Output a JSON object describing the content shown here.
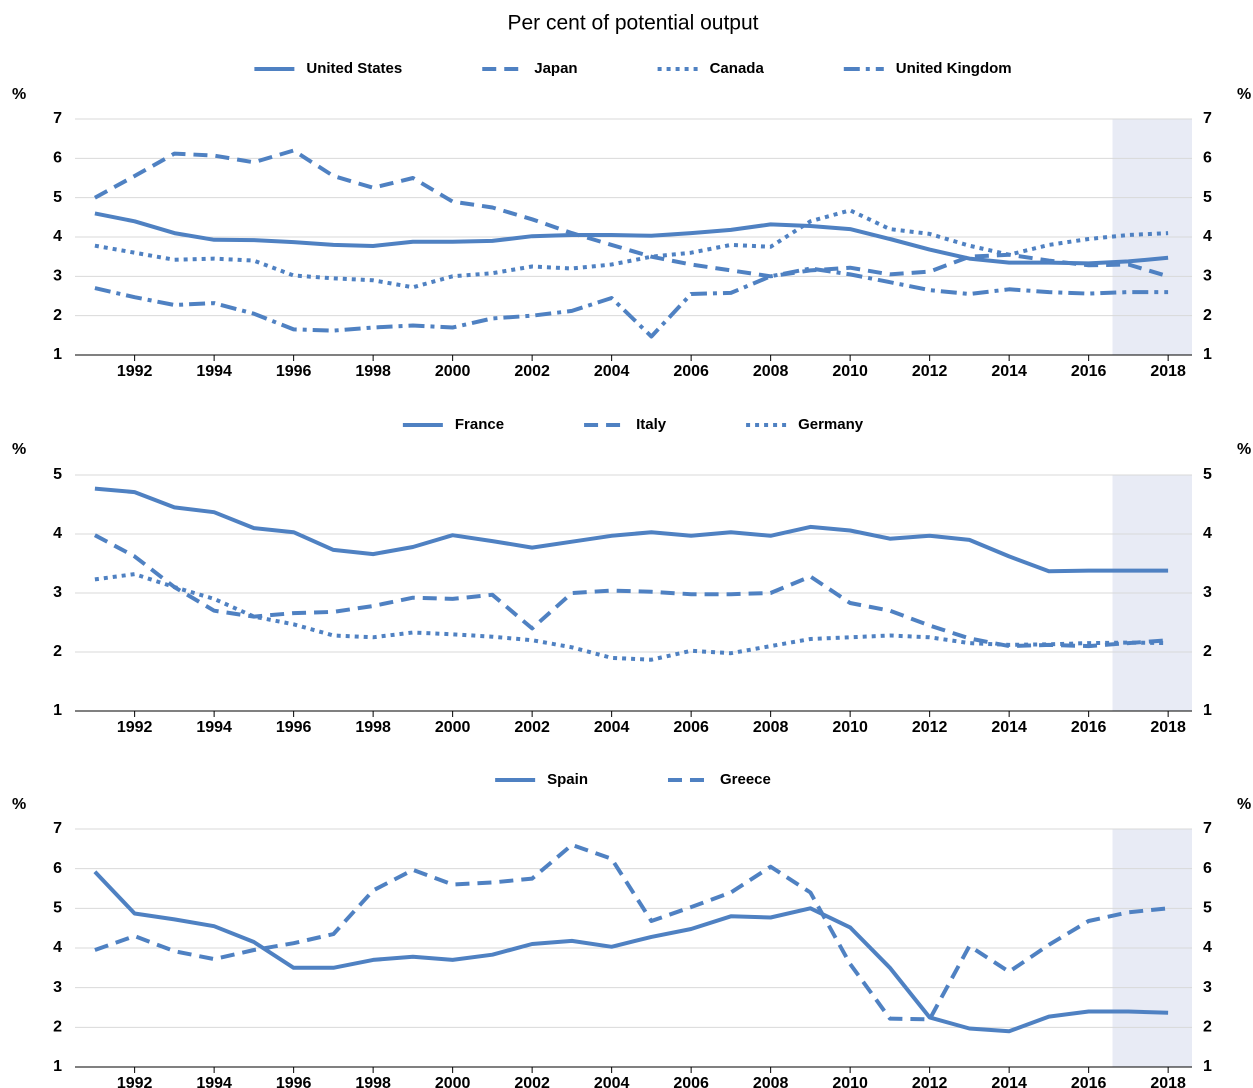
{
  "title": "Per cent of potential output",
  "chart_data": [
    {
      "type": "line",
      "ylabel": "%",
      "y2label": "%",
      "x": [
        1991,
        1992,
        1993,
        1994,
        1995,
        1996,
        1997,
        1998,
        1999,
        2000,
        2001,
        2002,
        2003,
        2004,
        2005,
        2006,
        2007,
        2008,
        2009,
        2010,
        2011,
        2012,
        2013,
        2014,
        2015,
        2016,
        2017,
        2018
      ],
      "xlim": [
        1990.5,
        2018.6
      ],
      "xticks": [
        1992,
        1994,
        1996,
        1998,
        2000,
        2002,
        2004,
        2006,
        2008,
        2010,
        2012,
        2014,
        2016,
        2018
      ],
      "ylim": [
        1,
        7
      ],
      "yticks": [
        1,
        2,
        3,
        4,
        5,
        6,
        7
      ],
      "y2lim": [
        1,
        7
      ],
      "y2ticks": [
        1,
        2,
        3,
        4,
        5,
        6,
        7
      ],
      "grid": true,
      "shaded_x": [
        2016.6,
        2018.6
      ],
      "shade_color": "#e8ebf5",
      "series": [
        {
          "name": "United States",
          "color": "#4f81c2",
          "dash": "solid",
          "values": [
            4.6,
            4.4,
            4.1,
            3.93,
            3.92,
            3.87,
            3.8,
            3.77,
            3.88,
            3.88,
            3.9,
            4.02,
            4.05,
            4.05,
            4.03,
            4.1,
            4.18,
            4.32,
            4.28,
            4.2,
            3.95,
            3.68,
            3.45,
            3.35,
            3.35,
            3.33,
            3.38,
            3.47
          ]
        },
        {
          "name": "Japan",
          "color": "#4f81c2",
          "dash": "dashed",
          "values": [
            5.0,
            5.55,
            6.12,
            6.07,
            5.9,
            6.2,
            5.55,
            5.25,
            5.5,
            4.9,
            4.75,
            4.45,
            4.1,
            3.8,
            3.5,
            3.3,
            3.15,
            3.0,
            3.15,
            3.22,
            3.05,
            3.12,
            3.5,
            3.55,
            3.4,
            3.28,
            3.3,
            3.0
          ]
        },
        {
          "name": "Canada",
          "color": "#4f81c2",
          "dash": "dotted",
          "values": [
            3.78,
            3.6,
            3.42,
            3.45,
            3.4,
            3.02,
            2.95,
            2.9,
            2.72,
            3.0,
            3.08,
            3.25,
            3.2,
            3.3,
            3.5,
            3.6,
            3.8,
            3.75,
            4.4,
            4.68,
            4.2,
            4.08,
            3.78,
            3.55,
            3.8,
            3.95,
            4.05,
            4.1
          ]
        },
        {
          "name": "United Kingdom",
          "color": "#4f81c2",
          "dash": "dashdot",
          "values": [
            2.7,
            2.47,
            2.27,
            2.32,
            2.05,
            1.65,
            1.62,
            1.7,
            1.75,
            1.7,
            1.93,
            2.0,
            2.12,
            2.45,
            1.47,
            2.55,
            2.58,
            3.0,
            3.2,
            3.05,
            2.85,
            2.65,
            2.55,
            2.67,
            2.6,
            2.56,
            2.6,
            2.6
          ]
        }
      ]
    },
    {
      "type": "line",
      "ylabel": "%",
      "y2label": "%",
      "x": [
        1991,
        1992,
        1993,
        1994,
        1995,
        1996,
        1997,
        1998,
        1999,
        2000,
        2001,
        2002,
        2003,
        2004,
        2005,
        2006,
        2007,
        2008,
        2009,
        2010,
        2011,
        2012,
        2013,
        2014,
        2015,
        2016,
        2017,
        2018
      ],
      "xlim": [
        1990.5,
        2018.6
      ],
      "xticks": [
        1992,
        1994,
        1996,
        1998,
        2000,
        2002,
        2004,
        2006,
        2008,
        2010,
        2012,
        2014,
        2016,
        2018
      ],
      "ylim": [
        1,
        5
      ],
      "yticks": [
        1,
        2,
        3,
        4,
        5
      ],
      "y2lim": [
        1,
        5
      ],
      "y2ticks": [
        1,
        2,
        3,
        4,
        5
      ],
      "grid": true,
      "shaded_x": [
        2016.6,
        2018.6
      ],
      "shade_color": "#e8ebf5",
      "series": [
        {
          "name": "France",
          "color": "#4f81c2",
          "dash": "solid",
          "values": [
            4.77,
            4.71,
            4.45,
            4.37,
            4.1,
            4.03,
            3.73,
            3.66,
            3.78,
            3.98,
            3.88,
            3.77,
            3.87,
            3.97,
            4.03,
            3.97,
            4.03,
            3.97,
            4.12,
            4.06,
            3.92,
            3.97,
            3.9,
            3.62,
            3.37,
            3.38,
            3.38,
            3.38
          ]
        },
        {
          "name": "Italy",
          "color": "#4f81c2",
          "dash": "dashed",
          "values": [
            3.98,
            3.62,
            3.1,
            2.7,
            2.6,
            2.66,
            2.68,
            2.78,
            2.92,
            2.9,
            2.97,
            2.4,
            3.0,
            3.04,
            3.02,
            2.98,
            2.98,
            3.0,
            3.28,
            2.83,
            2.7,
            2.45,
            2.23,
            2.1,
            2.12,
            2.1,
            2.15,
            2.2
          ]
        },
        {
          "name": "Germany",
          "color": "#4f81c2",
          "dash": "dotted",
          "values": [
            3.23,
            3.32,
            3.1,
            2.9,
            2.6,
            2.47,
            2.28,
            2.25,
            2.33,
            2.3,
            2.26,
            2.2,
            2.08,
            1.9,
            1.87,
            2.02,
            1.98,
            2.1,
            2.22,
            2.25,
            2.28,
            2.25,
            2.15,
            2.12,
            2.13,
            2.15,
            2.16,
            2.15
          ]
        }
      ]
    },
    {
      "type": "line",
      "ylabel": "%",
      "y2label": "%",
      "x": [
        1991,
        1992,
        1993,
        1994,
        1995,
        1996,
        1997,
        1998,
        1999,
        2000,
        2001,
        2002,
        2003,
        2004,
        2005,
        2006,
        2007,
        2008,
        2009,
        2010,
        2011,
        2012,
        2013,
        2014,
        2015,
        2016,
        2017,
        2018
      ],
      "xlim": [
        1990.5,
        2018.6
      ],
      "xticks": [
        1992,
        1994,
        1996,
        1998,
        2000,
        2002,
        2004,
        2006,
        2008,
        2010,
        2012,
        2014,
        2016,
        2018
      ],
      "ylim": [
        1,
        7
      ],
      "yticks": [
        1,
        2,
        3,
        4,
        5,
        6,
        7
      ],
      "y2lim": [
        1,
        7
      ],
      "y2ticks": [
        1,
        2,
        3,
        4,
        5,
        6,
        7
      ],
      "grid": true,
      "shaded_x": [
        2016.6,
        2018.6
      ],
      "shade_color": "#e8ebf5",
      "series": [
        {
          "name": "Spain",
          "color": "#4f81c2",
          "dash": "solid",
          "values": [
            5.92,
            4.87,
            4.72,
            4.55,
            4.15,
            3.5,
            3.5,
            3.7,
            3.78,
            3.7,
            3.83,
            4.1,
            4.18,
            4.03,
            4.28,
            4.48,
            4.8,
            4.77,
            5.0,
            4.52,
            3.5,
            2.25,
            1.97,
            1.9,
            2.27,
            2.4,
            2.4,
            2.37
          ]
        },
        {
          "name": "Greece",
          "color": "#4f81c2",
          "dash": "dashed",
          "values": [
            3.95,
            4.3,
            3.92,
            3.72,
            3.95,
            4.12,
            4.35,
            5.45,
            5.97,
            5.6,
            5.65,
            5.75,
            6.6,
            6.25,
            4.68,
            5.03,
            5.4,
            6.05,
            5.4,
            3.6,
            2.22,
            2.2,
            4.05,
            3.4,
            4.08,
            4.68,
            4.9,
            5.0
          ]
        }
      ]
    }
  ]
}
